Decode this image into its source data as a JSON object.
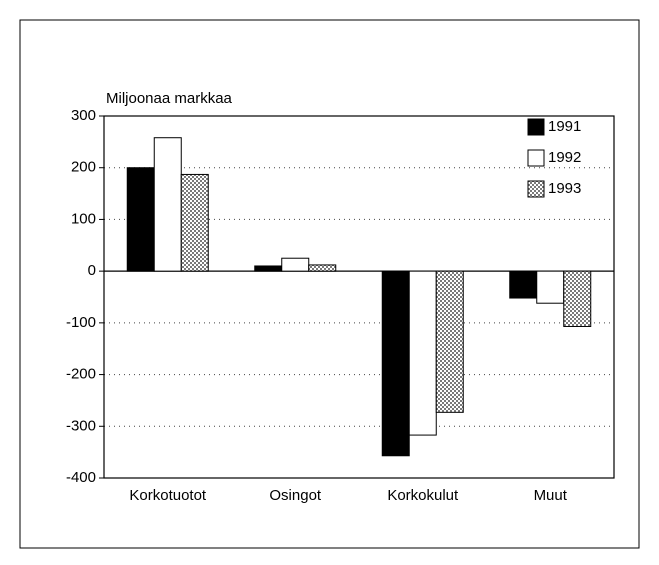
{
  "chart_data": {
    "type": "bar",
    "y_label": "Miljoonaa markkaa",
    "categories": [
      "Korkotuotot",
      "Osingot",
      "Korkokulut",
      "Muut"
    ],
    "series": [
      {
        "name": "1991",
        "color": "#000000",
        "values": [
          200,
          10,
          -357,
          -52
        ]
      },
      {
        "name": "1992",
        "color": "#ffffff",
        "values": [
          258,
          25,
          -317,
          -62
        ]
      },
      {
        "name": "1993",
        "color": "#7a7a7a",
        "hatch": true,
        "values": [
          187,
          12,
          -273,
          -107
        ]
      }
    ],
    "ylim": [
      -400,
      300
    ],
    "yticks": [
      -400,
      -300,
      -200,
      -100,
      0,
      100,
      200,
      300
    ],
    "grid": true,
    "legend": "upper right"
  }
}
